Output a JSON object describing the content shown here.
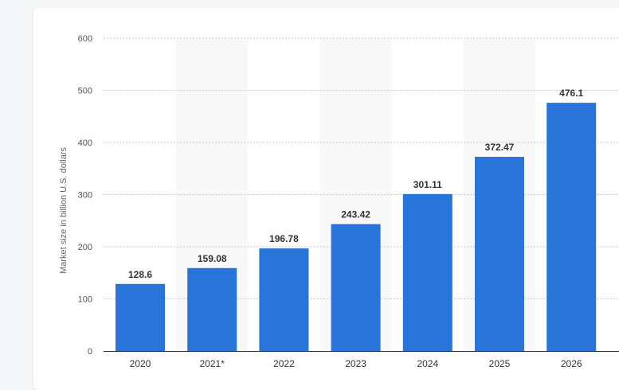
{
  "chart_data": {
    "type": "bar",
    "title": "",
    "xlabel": "",
    "ylabel": "Market size in billion U.S. dollars",
    "categories": [
      "2020",
      "2021*",
      "2022",
      "2023",
      "2024",
      "2025",
      "2026"
    ],
    "values": [
      128.6,
      159.08,
      196.78,
      243.42,
      301.11,
      372.47,
      476.1
    ],
    "value_labels": [
      "128.6",
      "159.08",
      "196.78",
      "243.42",
      "301.11",
      "372.47",
      "476.1"
    ],
    "ylim": [
      0,
      600
    ],
    "yticks": [
      0,
      100,
      200,
      300,
      400,
      500,
      600
    ],
    "grid": true,
    "legend": "none",
    "colors": {
      "bar": "#2874d9",
      "column_shade": "#f8f8f9",
      "grid": "#c8c8c8"
    }
  }
}
